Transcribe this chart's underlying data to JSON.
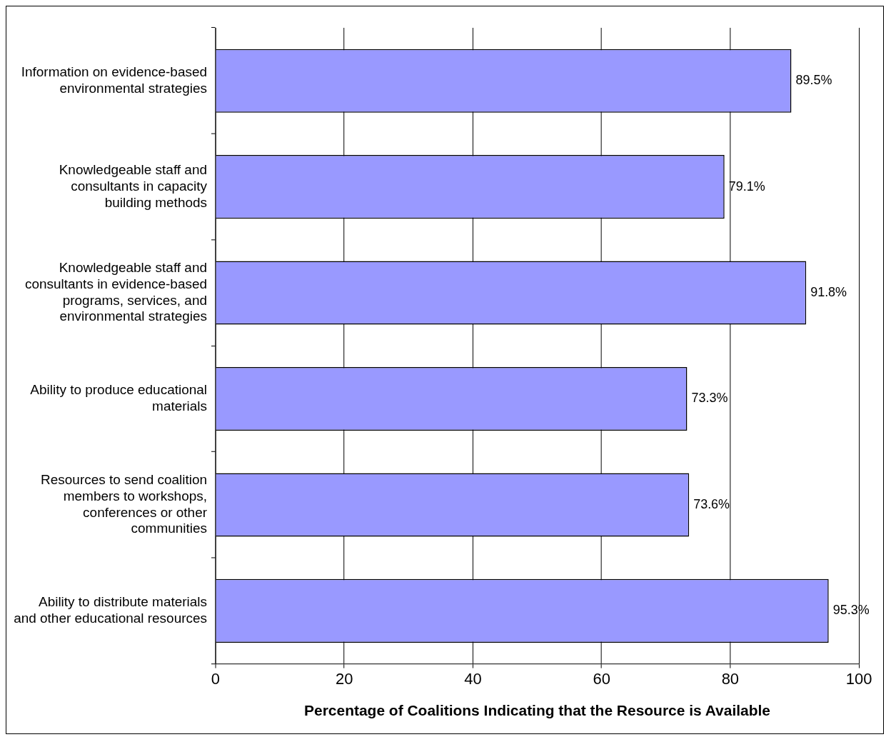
{
  "chart_data": {
    "type": "bar",
    "orientation": "horizontal",
    "xlabel": "Percentage of Coalitions Indicating that the Resource is Available",
    "categories": [
      "Information on evidence-based environmental strategies",
      "Knowledgeable staff and consultants in capacity building methods",
      "Knowledgeable staff and consultants in evidence-based programs, services, and environmental strategies",
      "Ability to produce educational materials",
      "Resources to send coalition members to workshops, conferences or other communities",
      "Ability to distribute materials and other educational resources"
    ],
    "values": [
      89.5,
      79.1,
      91.8,
      73.3,
      73.6,
      95.3
    ],
    "value_labels": [
      "89.5%",
      "79.1%",
      "91.8%",
      "73.3%",
      "73.6%",
      "95.3%"
    ],
    "color": "#9999ff",
    "xlim": [
      0,
      100
    ],
    "xticks": [
      0,
      20,
      40,
      60,
      80,
      100
    ],
    "grid": "x",
    "legend": false
  }
}
